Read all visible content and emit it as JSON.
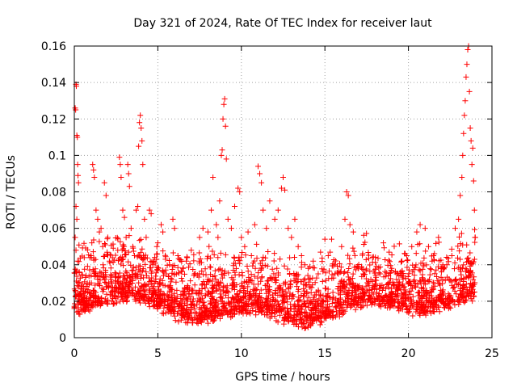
{
  "chart_data": {
    "type": "scatter",
    "title": "Day 321 of 2024, Rate Of TEC Index for receiver laut",
    "xlabel": "GPS time / hours",
    "ylabel": "ROTI / TECUs",
    "xlim": [
      0,
      25
    ],
    "ylim": [
      0,
      0.16
    ],
    "x_ticks": [
      0,
      5,
      10,
      15,
      20,
      25
    ],
    "x_tick_labels": [
      "0",
      "5",
      "10",
      "15",
      "20",
      "25"
    ],
    "y_ticks": [
      0,
      0.02,
      0.04,
      0.06,
      0.08,
      0.1,
      0.12,
      0.14,
      0.16
    ],
    "y_tick_labels": [
      "0",
      "0.02",
      "0.04",
      "0.06",
      "0.08",
      "0.1",
      "0.12",
      "0.14",
      "0.16"
    ],
    "grid": true,
    "marker": "+",
    "marker_color": "#ff0000",
    "series": [
      {
        "name": "ROTI",
        "points": [
          [
            0.05,
            0.126
          ],
          [
            0.08,
            0.125
          ],
          [
            0.1,
            0.139
          ],
          [
            0.12,
            0.138
          ],
          [
            0.15,
            0.111
          ],
          [
            0.18,
            0.11
          ],
          [
            0.2,
            0.095
          ],
          [
            0.22,
            0.089
          ],
          [
            0.25,
            0.085
          ],
          [
            0.1,
            0.072
          ],
          [
            0.15,
            0.065
          ],
          [
            0.05,
            0.055
          ],
          [
            0.1,
            0.048
          ],
          [
            0.2,
            0.042
          ],
          [
            0.3,
            0.036
          ],
          [
            0.12,
            0.031
          ],
          [
            0.25,
            0.028
          ],
          [
            0.35,
            0.024
          ],
          [
            0.4,
            0.02
          ],
          [
            0.5,
            0.018
          ],
          [
            0.6,
            0.022
          ],
          [
            0.7,
            0.016
          ],
          [
            0.8,
            0.025
          ],
          [
            0.9,
            0.03
          ],
          [
            1.0,
            0.045
          ],
          [
            1.05,
            0.052
          ],
          [
            1.1,
            0.095
          ],
          [
            1.15,
            0.092
          ],
          [
            1.2,
            0.088
          ],
          [
            1.3,
            0.07
          ],
          [
            1.4,
            0.065
          ],
          [
            1.5,
            0.058
          ],
          [
            1.6,
            0.06
          ],
          [
            1.7,
            0.05
          ],
          [
            1.8,
            0.085
          ],
          [
            1.9,
            0.078
          ],
          [
            2.0,
            0.055
          ],
          [
            2.1,
            0.042
          ],
          [
            2.2,
            0.03
          ],
          [
            2.3,
            0.025
          ],
          [
            2.5,
            0.035
          ],
          [
            2.6,
            0.048
          ],
          [
            2.7,
            0.099
          ],
          [
            2.75,
            0.095
          ],
          [
            2.8,
            0.088
          ],
          [
            2.9,
            0.07
          ],
          [
            3.0,
            0.066
          ],
          [
            3.1,
            0.055
          ],
          [
            3.2,
            0.095
          ],
          [
            3.25,
            0.09
          ],
          [
            3.3,
            0.083
          ],
          [
            3.4,
            0.06
          ],
          [
            3.5,
            0.05
          ],
          [
            3.6,
            0.045
          ],
          [
            3.7,
            0.07
          ],
          [
            3.8,
            0.072
          ],
          [
            3.85,
            0.105
          ],
          [
            3.9,
            0.118
          ],
          [
            3.95,
            0.122
          ],
          [
            4.0,
            0.115
          ],
          [
            4.05,
            0.108
          ],
          [
            4.1,
            0.095
          ],
          [
            4.2,
            0.065
          ],
          [
            4.3,
            0.055
          ],
          [
            4.5,
            0.07
          ],
          [
            4.6,
            0.068
          ],
          [
            4.7,
            0.04
          ],
          [
            4.8,
            0.03
          ],
          [
            5.0,
            0.052
          ],
          [
            5.2,
            0.062
          ],
          [
            5.3,
            0.058
          ],
          [
            5.5,
            0.035
          ],
          [
            5.7,
            0.04
          ],
          [
            5.9,
            0.065
          ],
          [
            6.0,
            0.06
          ],
          [
            6.2,
            0.045
          ],
          [
            6.5,
            0.038
          ],
          [
            6.7,
            0.042
          ],
          [
            7.0,
            0.048
          ],
          [
            7.2,
            0.035
          ],
          [
            7.5,
            0.055
          ],
          [
            7.7,
            0.06
          ],
          [
            8.0,
            0.058
          ],
          [
            8.2,
            0.07
          ],
          [
            8.3,
            0.088
          ],
          [
            8.5,
            0.062
          ],
          [
            8.6,
            0.055
          ],
          [
            8.7,
            0.075
          ],
          [
            8.8,
            0.1
          ],
          [
            8.85,
            0.103
          ],
          [
            8.9,
            0.12
          ],
          [
            8.95,
            0.128
          ],
          [
            9.0,
            0.131
          ],
          [
            9.05,
            0.116
          ],
          [
            9.1,
            0.098
          ],
          [
            9.2,
            0.065
          ],
          [
            9.4,
            0.06
          ],
          [
            9.6,
            0.072
          ],
          [
            9.8,
            0.082
          ],
          [
            9.9,
            0.08
          ],
          [
            10.0,
            0.055
          ],
          [
            10.2,
            0.05
          ],
          [
            10.4,
            0.058
          ],
          [
            10.6,
            0.045
          ],
          [
            10.8,
            0.062
          ],
          [
            11.0,
            0.094
          ],
          [
            11.1,
            0.09
          ],
          [
            11.2,
            0.085
          ],
          [
            11.3,
            0.07
          ],
          [
            11.5,
            0.06
          ],
          [
            11.7,
            0.075
          ],
          [
            12.0,
            0.065
          ],
          [
            12.2,
            0.07
          ],
          [
            12.4,
            0.082
          ],
          [
            12.5,
            0.088
          ],
          [
            12.6,
            0.081
          ],
          [
            12.8,
            0.06
          ],
          [
            13.0,
            0.055
          ],
          [
            13.2,
            0.065
          ],
          [
            13.4,
            0.05
          ],
          [
            13.6,
            0.045
          ],
          [
            13.8,
            0.04
          ],
          [
            14.0,
            0.038
          ],
          [
            14.3,
            0.042
          ],
          [
            14.6,
            0.035
          ],
          [
            15.0,
            0.054
          ],
          [
            15.2,
            0.045
          ],
          [
            15.4,
            0.054
          ],
          [
            15.6,
            0.04
          ],
          [
            15.8,
            0.035
          ],
          [
            16.0,
            0.05
          ],
          [
            16.2,
            0.065
          ],
          [
            16.3,
            0.08
          ],
          [
            16.4,
            0.078
          ],
          [
            16.5,
            0.062
          ],
          [
            16.7,
            0.058
          ],
          [
            17.0,
            0.038
          ],
          [
            17.3,
            0.035
          ],
          [
            17.6,
            0.03
          ],
          [
            18.0,
            0.028
          ],
          [
            18.3,
            0.035
          ],
          [
            18.5,
            0.052
          ],
          [
            18.8,
            0.03
          ],
          [
            19.0,
            0.038
          ],
          [
            19.3,
            0.035
          ],
          [
            19.6,
            0.042
          ],
          [
            19.9,
            0.045
          ],
          [
            20.2,
            0.05
          ],
          [
            20.5,
            0.058
          ],
          [
            20.7,
            0.062
          ],
          [
            21.0,
            0.06
          ],
          [
            21.2,
            0.05
          ],
          [
            21.5,
            0.045
          ],
          [
            21.8,
            0.055
          ],
          [
            22.0,
            0.038
          ],
          [
            22.3,
            0.04
          ],
          [
            22.6,
            0.045
          ],
          [
            22.8,
            0.06
          ],
          [
            23.0,
            0.065
          ],
          [
            23.1,
            0.078
          ],
          [
            23.2,
            0.088
          ],
          [
            23.25,
            0.1
          ],
          [
            23.3,
            0.112
          ],
          [
            23.35,
            0.122
          ],
          [
            23.4,
            0.13
          ],
          [
            23.45,
            0.143
          ],
          [
            23.5,
            0.15
          ],
          [
            23.55,
            0.158
          ],
          [
            23.6,
            0.16
          ],
          [
            23.65,
            0.135
          ],
          [
            23.7,
            0.115
          ],
          [
            23.75,
            0.108
          ],
          [
            23.8,
            0.095
          ],
          [
            23.85,
            0.104
          ],
          [
            23.9,
            0.086
          ],
          [
            23.95,
            0.07
          ],
          [
            24.0,
            0.055
          ]
        ]
      }
    ]
  }
}
